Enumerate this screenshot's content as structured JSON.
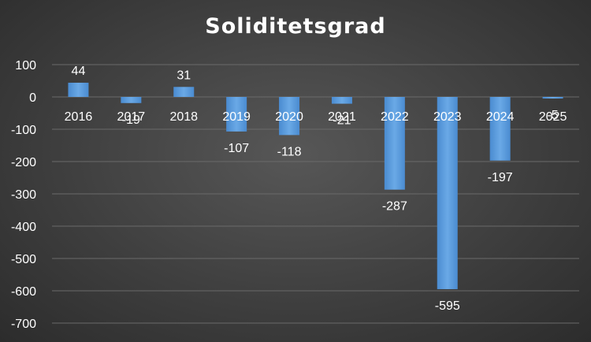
{
  "chart_data": {
    "type": "bar",
    "title": "Soliditetsgrad",
    "xlabel": "",
    "ylabel": "",
    "categories": [
      "2016",
      "2017",
      "2018",
      "2019",
      "2020",
      "2021",
      "2022",
      "2023",
      "2024",
      "2025"
    ],
    "values": [
      44,
      -19,
      31,
      -107,
      -118,
      -21,
      -287,
      -595,
      -197,
      -5
    ],
    "data_labels": [
      "44",
      "-19",
      "31",
      "-107",
      "-118",
      "-21",
      "-287",
      "-595",
      "-197",
      "-5"
    ],
    "yticks": [
      "100",
      "0",
      "-100",
      "-200",
      "-300",
      "-400",
      "-500",
      "-600",
      "-700"
    ],
    "ylim": [
      -700,
      100
    ],
    "grid": true,
    "legend": "none",
    "bar_color": "#5b9bd5",
    "background_color": "#404040",
    "text_color": "#ffffff"
  }
}
